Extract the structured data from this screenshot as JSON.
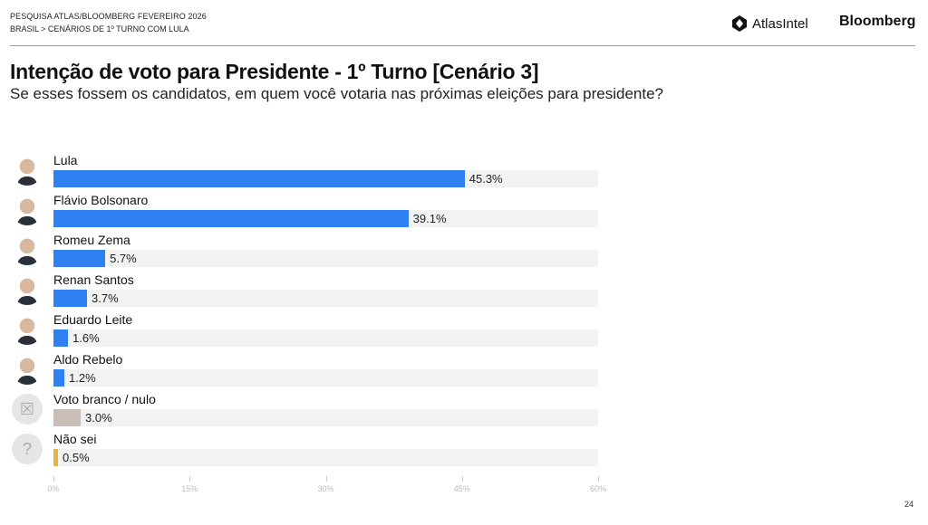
{
  "header": {
    "line1": "PESQUISA ATLAS/BLOOMBERG FEVEREIRO 2026",
    "line2": "BRASIL > CENÁRIOS DE 1º TURNO COM LULA",
    "logo_atlas": "AtlasIntel",
    "logo_bloomberg": "Bloomberg"
  },
  "page_number": "24",
  "chart_data": {
    "type": "bar",
    "orientation": "horizontal",
    "title": "Intenção de voto para Presidente - 1º Turno [Cenário 3]",
    "subtitle": "Se esses fossem os candidatos, em quem você votaria nas próximas eleições para presidente?",
    "categories": [
      "Lula",
      "Flávio Bolsonaro",
      "Romeu Zema",
      "Renan Santos",
      "Eduardo Leite",
      "Aldo Rebelo",
      "Voto branco / nulo",
      "Não sei"
    ],
    "values": [
      45.3,
      39.1,
      5.7,
      3.7,
      1.6,
      1.2,
      3.0,
      0.5
    ],
    "labels": [
      "45.3%",
      "39.1%",
      "5.7%",
      "3.7%",
      "1.6%",
      "1.2%",
      "3.0%",
      "0.5%"
    ],
    "colors": [
      "#2f80f2",
      "#2f80f2",
      "#2f80f2",
      "#2f80f2",
      "#2f80f2",
      "#2f80f2",
      "#c9bfb8",
      "#e8b443"
    ],
    "icons": [
      "photo",
      "photo",
      "photo",
      "photo",
      "photo",
      "photo",
      "x-box-icon",
      "question-box-icon"
    ],
    "xlim": [
      0,
      60
    ],
    "ticks": [
      "0%",
      "15%",
      "30%",
      "45%",
      "60%"
    ],
    "grid": false,
    "track_color": "#f2f2f2"
  }
}
